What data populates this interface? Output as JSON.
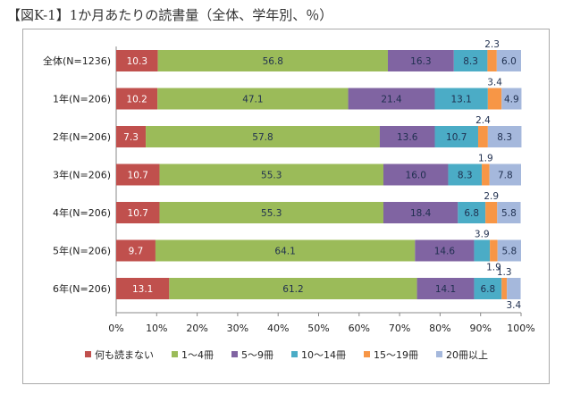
{
  "title": "【図K-1】1か月あたりの読書量（全体、学年別、％）",
  "chart_data": {
    "type": "bar",
    "stacked": true,
    "orientation": "horizontal",
    "categories": [
      "全体(N=1236)",
      "1年(N=206)",
      "2年(N=206)",
      "3年(N=206)",
      "4年(N=206)",
      "5年(N=206)",
      "6年(N=206)"
    ],
    "series": [
      {
        "name": "何も読まない",
        "color": "#c0504d",
        "values": [
          10.3,
          10.2,
          7.3,
          10.7,
          10.7,
          9.7,
          13.1
        ]
      },
      {
        "name": "1～4冊",
        "color": "#9bbb59",
        "values": [
          56.8,
          47.1,
          57.8,
          55.3,
          55.3,
          64.1,
          61.2
        ]
      },
      {
        "name": "5～9冊",
        "color": "#8064a2",
        "values": [
          16.3,
          21.4,
          13.6,
          16.0,
          18.4,
          14.6,
          14.1
        ]
      },
      {
        "name": "10～14冊",
        "color": "#4bacc6",
        "values": [
          8.3,
          13.1,
          10.7,
          8.3,
          6.8,
          3.9,
          6.8
        ]
      },
      {
        "name": "15～19冊",
        "color": "#f79646",
        "values": [
          2.3,
          3.4,
          2.4,
          1.9,
          2.9,
          1.9,
          1.3
        ]
      },
      {
        "name": "20冊以上",
        "color": "#a5b8dc",
        "values": [
          6.0,
          4.9,
          8.3,
          7.8,
          5.8,
          5.8,
          3.4
        ]
      }
    ],
    "xticks": [
      "0%",
      "10%",
      "20%",
      "30%",
      "40%",
      "50%",
      "60%",
      "70%",
      "80%",
      "90%",
      "100%"
    ],
    "xlim": [
      0,
      100
    ],
    "legend": "bottom",
    "grid": false
  }
}
